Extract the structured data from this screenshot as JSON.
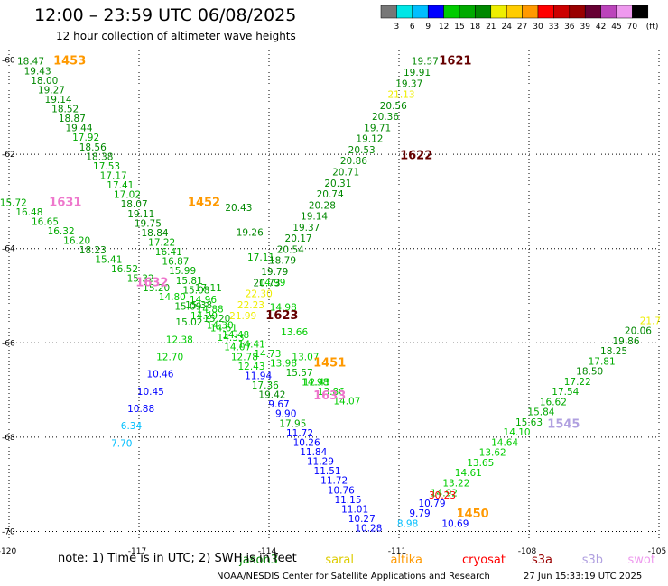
{
  "header": {
    "title": "12:00 – 23:59 UTC 06/08/2025",
    "subtitle": "12 hour collection of altimeter wave heights"
  },
  "colorbar": {
    "unit": "(ft)",
    "labels": [
      "3",
      "6",
      "9",
      "12",
      "15",
      "18",
      "21",
      "24",
      "27",
      "30",
      "33",
      "36",
      "39",
      "42",
      "45",
      "70"
    ],
    "colors": [
      "#777777",
      "#00e6e6",
      "#00bfff",
      "#0000ff",
      "#00cc00",
      "#00aa00",
      "#008800",
      "#eeee00",
      "#ffcc00",
      "#ff9900",
      "#ff0000",
      "#cc0000",
      "#990000",
      "#660033",
      "#bb44bb",
      "#ee99ee",
      "#000000"
    ]
  },
  "chart_data": {
    "type": "scatter",
    "title": "12:00 – 23:59 UTC 06/08/2025",
    "subtitle": "12 hour collection of altimeter wave heights",
    "xlabel": "",
    "ylabel": "",
    "xlim": [
      -120,
      -105
    ],
    "ylim": [
      -70.2,
      -59.8
    ],
    "x_ticks": [
      "-120",
      "-117",
      "-114",
      "-111",
      "-108",
      "-105"
    ],
    "y_ticks": [
      "-60",
      "-62",
      "-64",
      "-66",
      "-68",
      "-70"
    ],
    "grid": true,
    "tracks": [
      {
        "label": "1453",
        "label_lon": -118.6,
        "label_lat": -60.1,
        "color": "#ff9900",
        "start": [
          -119.5,
          -60.1
        ],
        "end": [
          -111.7,
          -70.0
        ],
        "values": [
          "18.47",
          "19.43",
          "18.00",
          "19.27",
          "19.14",
          "18.52",
          "18.87",
          "19.44",
          "17.92",
          "18.56",
          "18.38",
          "17.53",
          "17.17",
          "17.41",
          "17.02",
          "18.07",
          "19.11",
          "19.75",
          "18.84",
          "17.22",
          "16.41",
          "16.87",
          "15.99",
          "15.81",
          "15.08",
          "14.96",
          "14.88",
          "15.20",
          "14.61",
          "14.33",
          "14.07",
          "12.78",
          "12.43",
          "11.94",
          "17.36",
          "19.42",
          "9.67",
          "9.90",
          "17.95",
          "11.72",
          "10.26",
          "11.84",
          "11.29",
          "11.51",
          "11.72",
          "10.76",
          "11.15",
          "11.01",
          "10.27",
          "10.28"
        ]
      },
      {
        "label": "1631",
        "label_lon": -118.7,
        "label_lat": -63.1,
        "color": "#ee77cc",
        "start": [
          -119.9,
          -63.1
        ],
        "end": [
          -112.2,
          -67.3
        ],
        "values": [
          "15.72",
          "16.48",
          "16.65",
          "16.32",
          "16.20",
          "18.23",
          "15.41",
          "16.52",
          "15.32",
          "15.20",
          "14.80",
          "15.09",
          "14.29",
          "14.30",
          "14.48",
          "14.41",
          "14.73",
          "13.98",
          "15.57",
          "14.98",
          "13.86",
          "14.07"
        ]
      },
      {
        "label": "1632",
        "label_lon": -116.7,
        "label_lat": -64.8,
        "color": "#ee77cc",
        "start": [
          -115.4,
          -64.9
        ],
        "end": [
          -117.4,
          -68.2
        ],
        "values": [
          "17.11",
          "15.38",
          "15.02",
          "12.38",
          "12.70",
          "10.46",
          "10.45",
          "10.88",
          "6.34",
          "7.70"
        ]
      },
      {
        "label": "1452",
        "label_lon": -115.5,
        "label_lat": -63.1,
        "color": "#ff9900",
        "start": [
          -114.7,
          -63.2
        ],
        "end": [
          -112.9,
          -66.9
        ],
        "values": [
          "20.43",
          "19.26",
          "17.11",
          "14.99",
          "14.98",
          "13.66",
          "13.07",
          "12.43"
        ]
      },
      {
        "label": "1621",
        "label_lon": -109.7,
        "label_lat": -60.1,
        "color": "#660000",
        "start": [
          -110.4,
          -60.1
        ],
        "end": [
          -114.6,
          -65.5
        ],
        "values": [
          "19.57",
          "19.91",
          "19.37",
          "21.13",
          "20.56",
          "20.36",
          "19.71",
          "19.12",
          "20.53",
          "20.86",
          "20.71",
          "20.31",
          "20.74",
          "20.28",
          "19.14",
          "19.37",
          "20.17",
          "20.54",
          "18.79",
          "19.79",
          "20.73",
          "22.30",
          "22.23",
          "21.99"
        ]
      },
      {
        "label": "1622",
        "label_lon": -110.6,
        "label_lat": -62.1,
        "color": "#660000",
        "start": [
          -110.6,
          -62.1
        ],
        "end": [
          -110.6,
          -62.1
        ],
        "values": []
      },
      {
        "label": "1623",
        "label_lon": -113.7,
        "label_lat": -65.5,
        "color": "#660000",
        "start": [
          -113.7,
          -65.5
        ],
        "end": [
          -113.7,
          -65.5
        ],
        "values": []
      },
      {
        "label": "1451",
        "label_lon": -112.6,
        "label_lat": -66.5,
        "color": "#ff9900",
        "start": [
          -112.6,
          -66.5
        ],
        "end": [
          -112.6,
          -66.5
        ],
        "values": []
      },
      {
        "label": "1633",
        "label_lon": -112.6,
        "label_lat": -67.2,
        "color": "#ee77cc",
        "start": [
          -112.6,
          -67.2
        ],
        "end": [
          -112.6,
          -67.2
        ],
        "values": []
      },
      {
        "label": "1545",
        "label_lon": -107.2,
        "label_lat": -67.8,
        "color": "#b0a0e0",
        "start": [
          -105.2,
          -65.6
        ],
        "end": [
          -110.8,
          -69.9
        ],
        "values": [
          "21.7",
          "20.06",
          "19.86",
          "18.25",
          "17.81",
          "18.50",
          "17.22",
          "17.54",
          "16.62",
          "15.84",
          "15.63",
          "14.10",
          "14.64",
          "13.62",
          "13.65",
          "14.61",
          "13.22",
          "14.92",
          "10.79",
          "9.79",
          "8.98"
        ]
      },
      {
        "label": "1450",
        "label_lon": -109.3,
        "label_lat": -69.7,
        "color": "#ff9900",
        "start": [
          -110.0,
          -69.3
        ],
        "end": [
          -109.7,
          -69.9
        ],
        "values": [
          "30.23",
          "10.69"
        ]
      }
    ],
    "legend": [
      {
        "label": "jason3",
        "color": "#008800"
      },
      {
        "label": "saral",
        "color": "#ddcc00"
      },
      {
        "label": "altika",
        "color": "#ff9900"
      },
      {
        "label": "cryosat",
        "color": "#ff0000"
      },
      {
        "label": "s3a",
        "color": "#990000"
      },
      {
        "label": "s3b",
        "color": "#b0a0e0"
      },
      {
        "label": "swot",
        "color": "#ee99ee"
      }
    ]
  },
  "footer": {
    "note": "note: 1) Time is in UTC; 2) SWH is in feet",
    "credit": "NOAA/NESDIS Center for Satellite Applications and Research",
    "timestamp": "27 Jun 15:33:19 UTC 2025"
  }
}
